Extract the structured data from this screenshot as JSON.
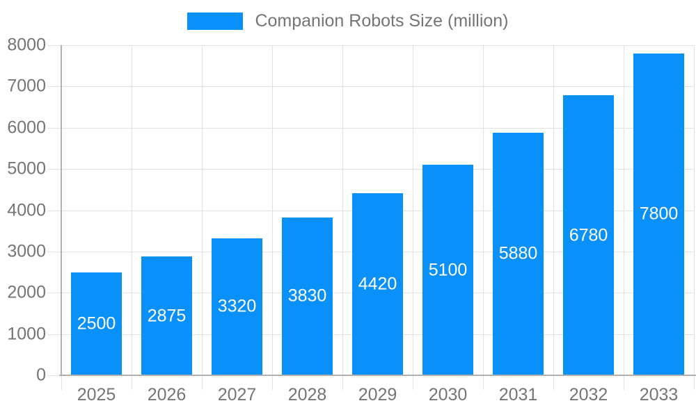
{
  "chart_data": {
    "type": "bar",
    "title": "Companion Robots Size (million)",
    "categories": [
      "2025",
      "2026",
      "2027",
      "2028",
      "2029",
      "2030",
      "2031",
      "2032",
      "2033"
    ],
    "values": [
      2500,
      2875,
      3320,
      3830,
      4420,
      5100,
      5880,
      6780,
      7800
    ],
    "value_labels": [
      "2500",
      "2875",
      "3320",
      "3830",
      "4420",
      "5100",
      "5880",
      "6780",
      "7800"
    ],
    "xlabel": "",
    "ylabel": "",
    "ylim": [
      0,
      8000
    ],
    "ytick_step": 1000,
    "ytick_labels": [
      "0",
      "1000",
      "2000",
      "3000",
      "4000",
      "5000",
      "6000",
      "7000",
      "8000"
    ],
    "grid": true,
    "legend_position": "top-center",
    "bar_color": "#0a90f9",
    "value_label_color": "#ffffff",
    "axis_text_color": "#757575",
    "gridline_color": "#e2e2e2",
    "axis_line_color": "#b0b0b0"
  }
}
